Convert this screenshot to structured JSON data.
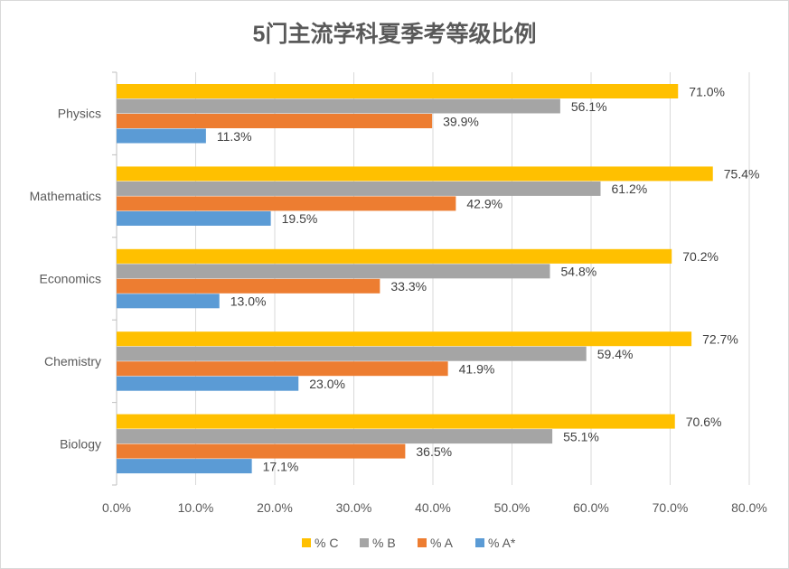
{
  "chart_data": {
    "type": "bar",
    "orientation": "horizontal",
    "title": "5门主流学科夏季考等级比例",
    "categories": [
      "Physics",
      "Mathematics",
      "Economics",
      "Chemistry",
      "Biology"
    ],
    "series": [
      {
        "name": "% C",
        "color": "#FFC000",
        "values": [
          71.0,
          75.4,
          70.2,
          72.7,
          70.6
        ]
      },
      {
        "name": "% B",
        "color": "#A5A5A5",
        "values": [
          56.1,
          61.2,
          54.8,
          59.4,
          55.1
        ]
      },
      {
        "name": "% A",
        "color": "#ED7D31",
        "values": [
          39.9,
          42.9,
          33.3,
          41.9,
          36.5
        ]
      },
      {
        "name": "% A*",
        "color": "#5B9BD5",
        "values": [
          11.3,
          19.5,
          13.0,
          23.0,
          17.1
        ]
      }
    ],
    "xlim": [
      0,
      80
    ],
    "x_ticks": [
      "0.0%",
      "10.0%",
      "20.0%",
      "30.0%",
      "40.0%",
      "50.0%",
      "60.0%",
      "70.0%",
      "80.0%"
    ],
    "xlabel": "",
    "ylabel": "",
    "grid": "vertical",
    "legend": "bottom",
    "data_labels": true
  }
}
